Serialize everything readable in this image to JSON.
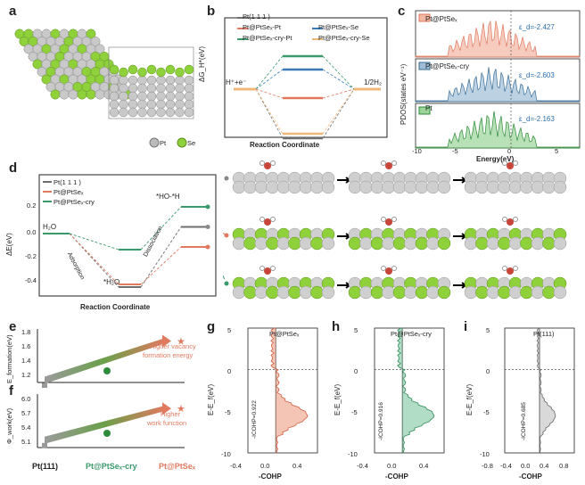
{
  "colors": {
    "pt": "#6e6e6e",
    "ptse": "#e07a5f",
    "cry": "#3a9a6a",
    "blue": "#3a79b5",
    "orange": "#f0b878",
    "green": "#2e8b3a"
  },
  "panels": {
    "a": {
      "label": "a",
      "legend_pt": "Pt",
      "legend_se": "Se"
    },
    "b": {
      "label": "b",
      "ylabel": "ΔG_H*(eV)",
      "xlabel": "Reaction Coordinate",
      "left": "H⁺+e⁻",
      "right": "1/2H₂",
      "legend": [
        "Pt(1 1 1 )",
        "Pt@PtSeₓ-Pt",
        "Pt@PtSeₓ-cry-Pt",
        "Pt@PtSeₓ-Se",
        "Pt@PtSeₓ-cry-Se"
      ]
    },
    "c": {
      "label": "c",
      "ylabel": "PDOS(states eV⁻¹)",
      "xlabel": "Energy(eV)",
      "subs": [
        {
          "name": "Pt@PtSeₓ",
          "ed": "ε_d=-2.427"
        },
        {
          "name": "Pt@PtSeₓ-cry",
          "ed": "ε_d=-2.603"
        },
        {
          "name": "Pt",
          "ed": "ε_d=-2.163"
        }
      ],
      "xticks": [
        "-10",
        "-5",
        "0",
        "5"
      ]
    },
    "d": {
      "label": "d",
      "ylabel": "ΔE(eV)",
      "xlabel": "Reaction Coordinate",
      "legend": [
        "Pt(1 1 1 )",
        "Pt@PtSeₓ",
        "Pt@PtSeₓ-cry"
      ],
      "yticks": [
        "0.2",
        "0.0",
        "-0.2",
        "-0.4"
      ],
      "h2o": "H₂O",
      "star_h2o": "*H₂O",
      "hoh": "*HO-*H",
      "adsorption": "Adsorption",
      "dissociation": "Dissociation"
    },
    "e": {
      "label": "e",
      "ylabel": "E_formation(eV)",
      "yticks": [
        "1.8",
        "1.6",
        "1.4",
        "1.2"
      ],
      "note": [
        "Higher vacancy",
        "formation energy"
      ]
    },
    "f": {
      "label": "f",
      "ylabel": "Φ_work(eV)",
      "yticks": [
        "6.0",
        "5.7",
        "5.4",
        "5.1"
      ],
      "note": [
        "Higher",
        "work function"
      ],
      "xcats": [
        "Pt(111)",
        "Pt@PtSeₓ-cry",
        "Pt@PtSeₓ"
      ]
    },
    "g": {
      "label": "g",
      "title": "Pt@PtSeₓ",
      "icohp": "-ICOHP=0.922",
      "xlabel": "-COHP",
      "ylabel": "E-E_f(eV)",
      "xticks": [
        "-0.4",
        "0.0",
        "0.4"
      ]
    },
    "h": {
      "label": "h",
      "title": "Pt@PtSeₓ-cry",
      "icohp": "-ICOHP=0.916",
      "xlabel": "-COHP",
      "ylabel": "E-E_f(eV)",
      "xticks": [
        "-0.4",
        "0.0",
        "0.4"
      ]
    },
    "i": {
      "label": "i",
      "title": "Pt(111)",
      "icohp": "-ICOHP=0.685",
      "xlabel": "-COHP",
      "ylabel": "E-E_f(eV)",
      "xticks": [
        "-0.8",
        "-0.4",
        "0.0",
        "0.4",
        "0.8"
      ]
    }
  },
  "yticks_cohp": [
    "5",
    "0",
    "-5",
    "-10"
  ],
  "chart_data": [
    {
      "type": "line",
      "title": "",
      "xlabel": "Reaction Coordinate",
      "ylabel": "ΔG_H*(eV)",
      "series": [
        {
          "name": "Pt(1 1 1 )",
          "values": [
            0,
            -0.55,
            0
          ]
        },
        {
          "name": "Pt@PtSeₓ-Pt",
          "values": [
            0,
            -0.1,
            0
          ]
        },
        {
          "name": "Pt@PtSeₓ-cry-Pt",
          "values": [
            0,
            0.37,
            0
          ]
        },
        {
          "name": "Pt@PtSeₓ-Se",
          "values": [
            0,
            0.22,
            0
          ]
        },
        {
          "name": "Pt@PtSeₓ-cry-Se",
          "values": [
            0,
            -0.5,
            0
          ]
        }
      ]
    },
    {
      "type": "line",
      "xlabel": "Reaction Coordinate",
      "ylabel": "ΔE(eV)",
      "categories": [
        "H₂O",
        "*H₂O",
        "*HO-*H"
      ],
      "series": [
        {
          "name": "Pt(1 1 1 )",
          "values": [
            0,
            -0.4,
            0.05
          ]
        },
        {
          "name": "Pt@PtSeₓ",
          "values": [
            0,
            -0.38,
            -0.1
          ]
        },
        {
          "name": "Pt@PtSeₓ-cry",
          "values": [
            0,
            -0.12,
            0.2
          ]
        }
      ]
    },
    {
      "type": "scatter",
      "ylabel": "E_formation(eV)",
      "categories": [
        "Pt(111)",
        "Pt@PtSeₓ-cry",
        "Pt@PtSeₓ"
      ],
      "values": [
        1.16,
        1.38,
        1.72
      ],
      "ylim": [
        1.1,
        1.9
      ]
    },
    {
      "type": "scatter",
      "ylabel": "Φ_work(eV)",
      "categories": [
        "Pt(111)",
        "Pt@PtSeₓ-cry",
        "Pt@PtSeₓ"
      ],
      "values": [
        5.27,
        5.5,
        5.83
      ],
      "ylim": [
        5.1,
        6.1
      ]
    }
  ]
}
